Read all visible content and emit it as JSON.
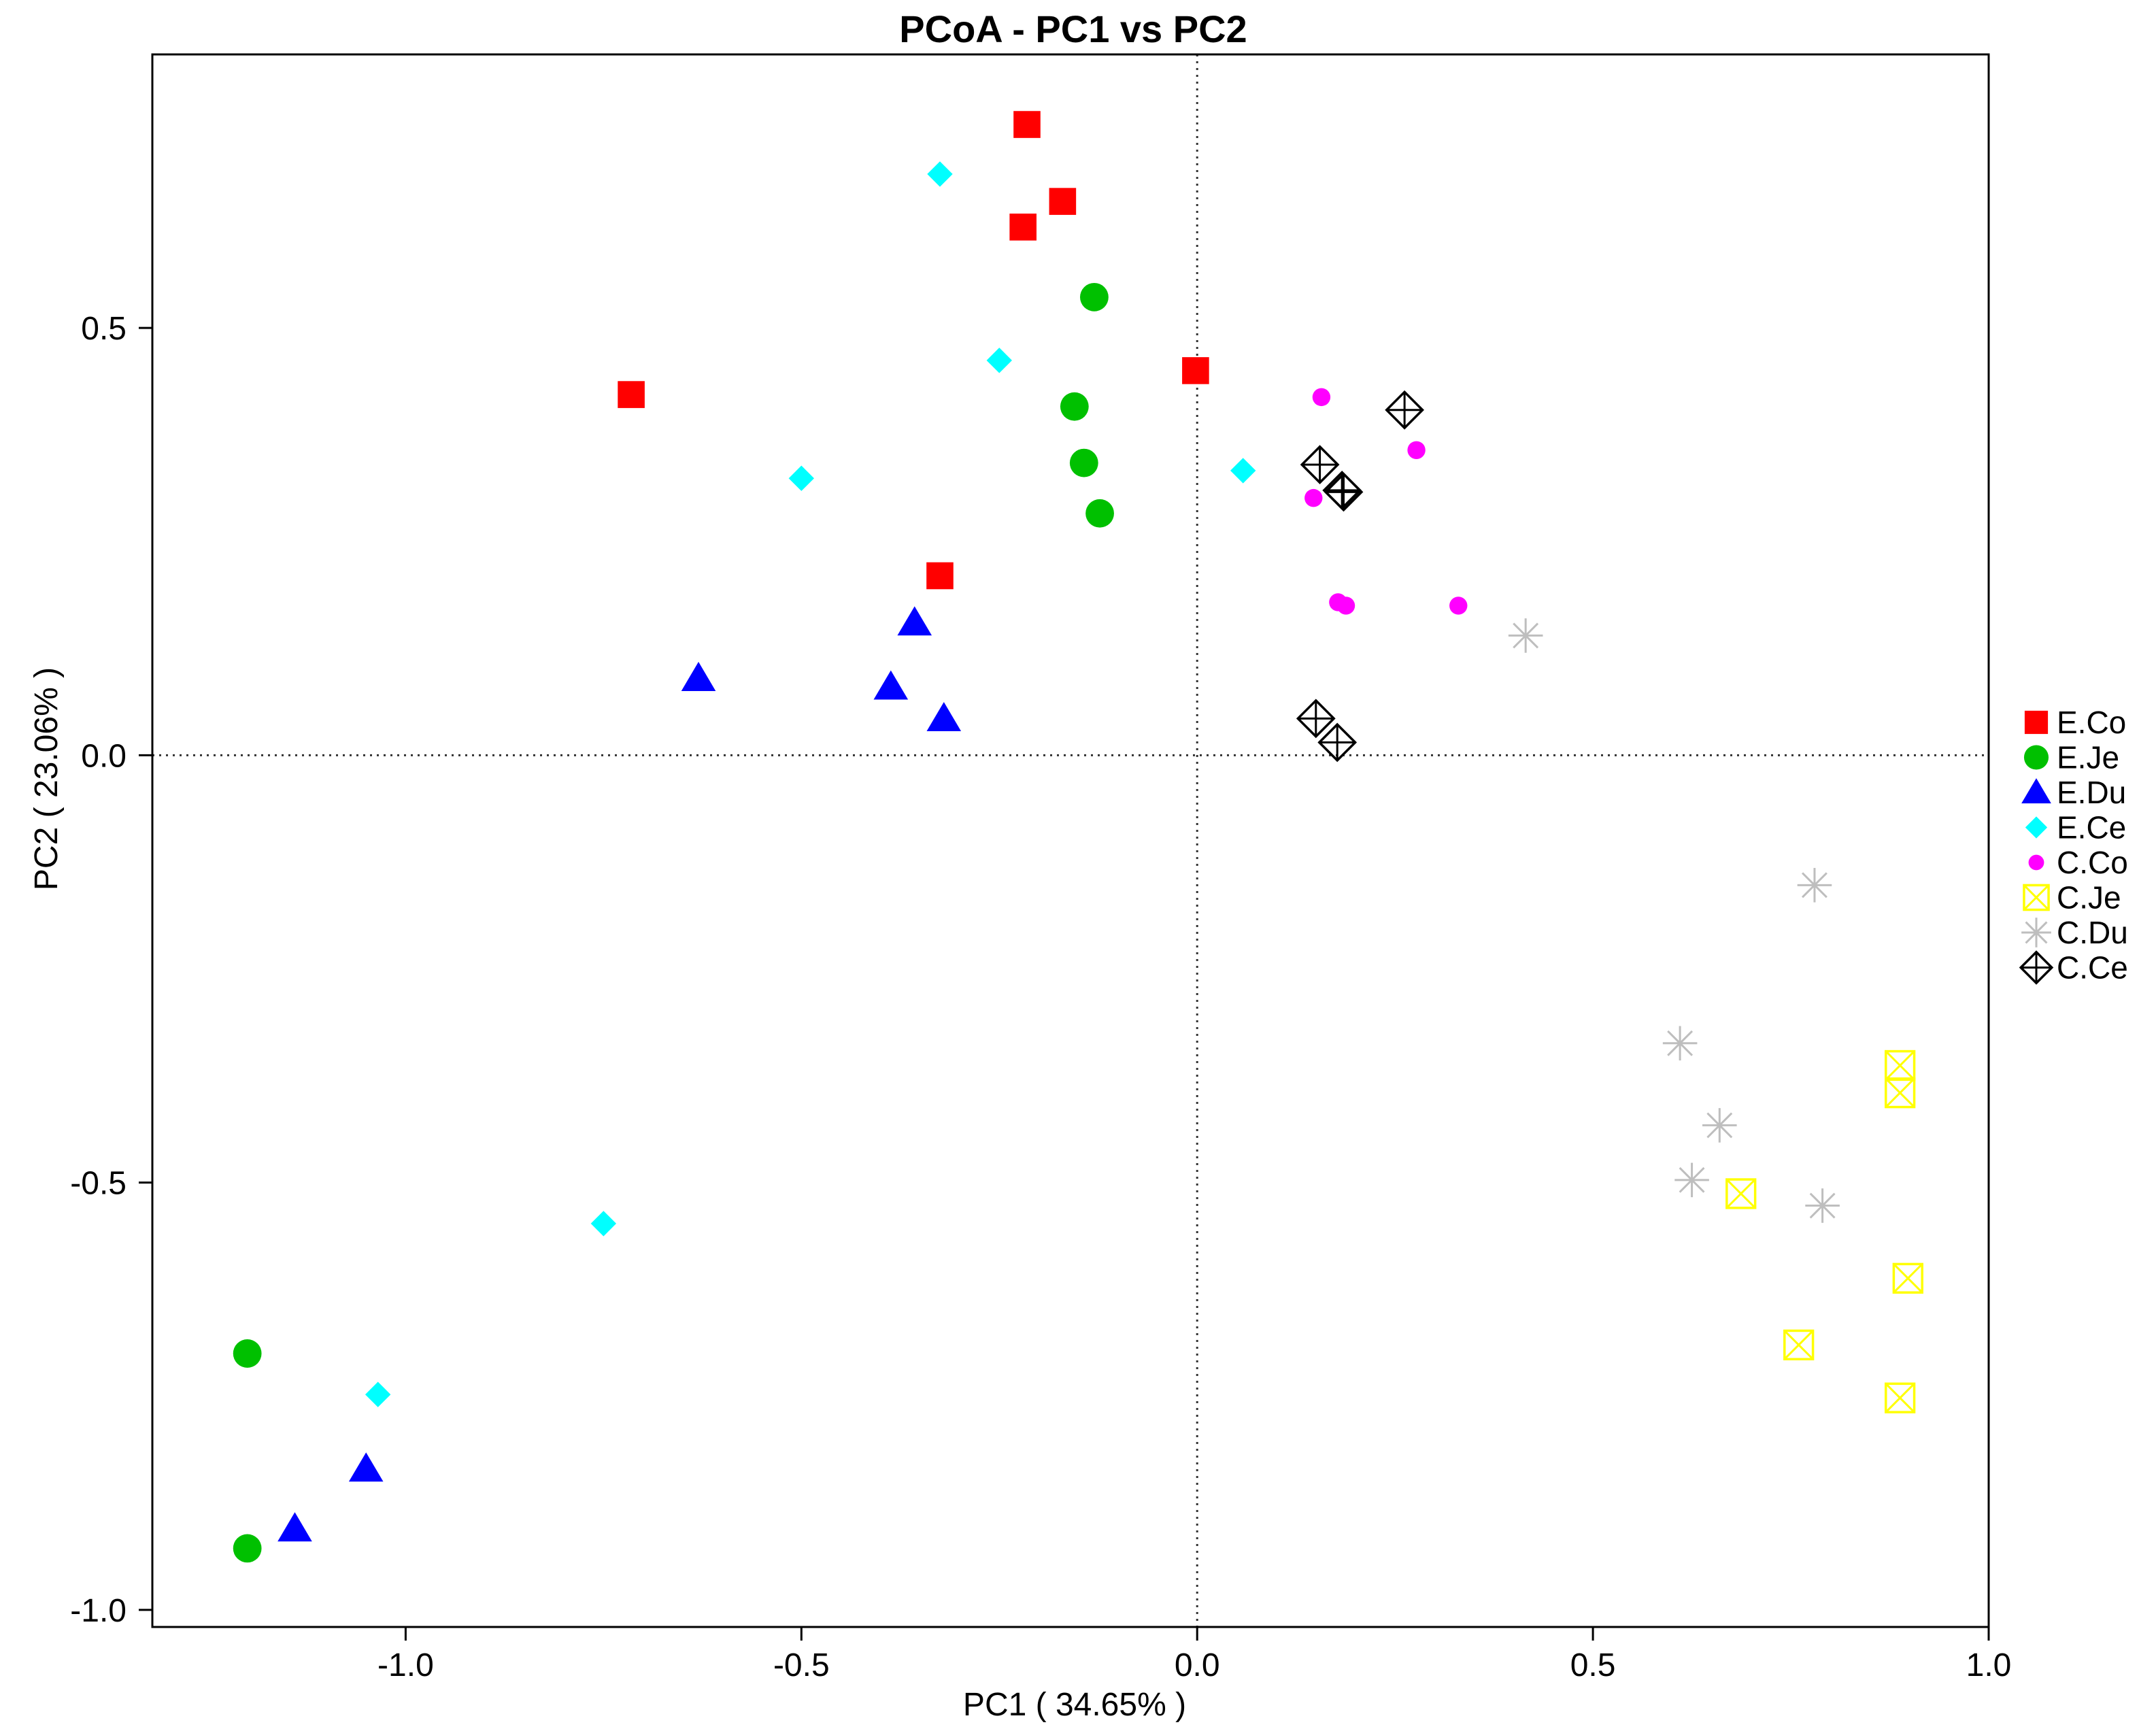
{
  "chart_data": {
    "type": "scatter",
    "title": "PCoA - PC1 vs PC2",
    "xlabel": "PC1 ( 34.65% )",
    "ylabel": "PC2 ( 23.06% )",
    "xlim": [
      -1.32,
      1.0
    ],
    "ylim": [
      -1.02,
      0.82
    ],
    "x_ticks": [
      -1.0,
      -0.5,
      0.0,
      0.5,
      1.0
    ],
    "x_tick_labels": [
      "-1.0",
      "-0.5",
      "0.0",
      "0.5",
      "1.0"
    ],
    "y_ticks": [
      -1.0,
      -0.5,
      0.0,
      0.5
    ],
    "y_tick_labels": [
      "-1.0",
      "-0.5",
      "0.0",
      "0.5"
    ],
    "reference_lines": {
      "x": 0,
      "y": 0,
      "style": "dotted"
    },
    "grid": false,
    "legend_position": "right",
    "series": [
      {
        "name": "E.Co",
        "marker": "square",
        "color": "#ff0000",
        "points": [
          {
            "x": -0.215,
            "y": 0.738
          },
          {
            "x": -0.17,
            "y": 0.648
          },
          {
            "x": -0.22,
            "y": 0.618
          },
          {
            "x": -0.002,
            "y": 0.45
          },
          {
            "x": -0.715,
            "y": 0.422
          },
          {
            "x": -0.325,
            "y": 0.21
          }
        ]
      },
      {
        "name": "E.Je",
        "marker": "circle",
        "color": "#00c000",
        "points": [
          {
            "x": -0.13,
            "y": 0.536
          },
          {
            "x": -0.155,
            "y": 0.408
          },
          {
            "x": -0.143,
            "y": 0.342
          },
          {
            "x": -0.123,
            "y": 0.283
          },
          {
            "x": -1.2,
            "y": -0.7
          },
          {
            "x": -1.2,
            "y": -0.928
          }
        ]
      },
      {
        "name": "E.Du",
        "marker": "triangle",
        "color": "#0000ff",
        "points": [
          {
            "x": -0.357,
            "y": 0.155
          },
          {
            "x": -0.63,
            "y": 0.09
          },
          {
            "x": -0.387,
            "y": 0.08
          },
          {
            "x": -0.32,
            "y": 0.043
          },
          {
            "x": -1.05,
            "y": -0.835
          },
          {
            "x": -1.14,
            "y": -0.905
          }
        ]
      },
      {
        "name": "E.Ce",
        "marker": "diamond",
        "color": "#00ffff",
        "points": [
          {
            "x": -0.325,
            "y": 0.68
          },
          {
            "x": -0.25,
            "y": 0.462
          },
          {
            "x": -0.5,
            "y": 0.324
          },
          {
            "x": 0.058,
            "y": 0.333
          },
          {
            "x": -0.75,
            "y": -0.548
          },
          {
            "x": -1.035,
            "y": -0.748
          }
        ]
      },
      {
        "name": "C.Co",
        "marker": "small-circle",
        "color": "#ff00ff",
        "points": [
          {
            "x": 0.157,
            "y": 0.419
          },
          {
            "x": 0.277,
            "y": 0.357
          },
          {
            "x": 0.147,
            "y": 0.301
          },
          {
            "x": 0.178,
            "y": 0.179
          },
          {
            "x": 0.188,
            "y": 0.175
          },
          {
            "x": 0.33,
            "y": 0.175
          }
        ]
      },
      {
        "name": "C.Je",
        "marker": "boxed-x",
        "color": "#ffff00",
        "points": [
          {
            "x": 0.888,
            "y": -0.363
          },
          {
            "x": 0.888,
            "y": -0.395
          },
          {
            "x": 0.687,
            "y": -0.513
          },
          {
            "x": 0.898,
            "y": -0.612
          },
          {
            "x": 0.76,
            "y": -0.69
          },
          {
            "x": 0.888,
            "y": -0.752
          }
        ]
      },
      {
        "name": "C.Du",
        "marker": "asterisk",
        "color": "#bebebe",
        "points": [
          {
            "x": 0.415,
            "y": 0.14
          },
          {
            "x": 0.78,
            "y": -0.152
          },
          {
            "x": 0.61,
            "y": -0.337
          },
          {
            "x": 0.66,
            "y": -0.433
          },
          {
            "x": 0.625,
            "y": -0.497
          },
          {
            "x": 0.79,
            "y": -0.527
          }
        ]
      },
      {
        "name": "C.Ce",
        "marker": "diamond-plus",
        "color": "#000000",
        "points": [
          {
            "x": 0.262,
            "y": 0.404
          },
          {
            "x": 0.155,
            "y": 0.34
          },
          {
            "x": 0.183,
            "y": 0.31
          },
          {
            "x": 0.185,
            "y": 0.308
          },
          {
            "x": 0.15,
            "y": 0.043
          },
          {
            "x": 0.177,
            "y": 0.015
          }
        ]
      }
    ]
  }
}
